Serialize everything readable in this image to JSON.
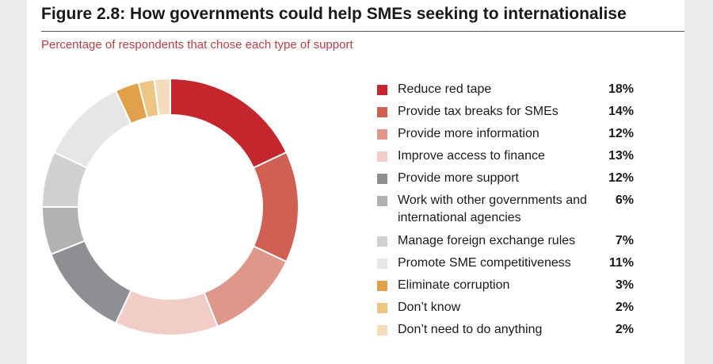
{
  "title": "Figure 2.8: How governments could help SMEs seeking to internationalise",
  "subtitle": "Percentage of respondents that chose each type of support",
  "chart_data": {
    "type": "pie",
    "donut": true,
    "legend_position": "right",
    "categories": [
      "Reduce red tape",
      "Provide tax breaks for SMEs",
      "Provide more information",
      "Improve access to finance",
      "Provide more support",
      "Work with other governments and international agencies",
      "Manage foreign exchange rules",
      "Promote SME competitiveness",
      "Eliminate corruption",
      "Don’t know",
      "Don’t need to do anything"
    ],
    "values": [
      18,
      14,
      12,
      13,
      12,
      6,
      7,
      11,
      3,
      2,
      2
    ],
    "labels": [
      "18%",
      "14%",
      "12%",
      "13%",
      "12%",
      "6%",
      "7%",
      "11%",
      "3%",
      "2%",
      "2%"
    ],
    "colors": [
      "#c4262e",
      "#d06054",
      "#e0978b",
      "#f1cdc5",
      "#8e8f92",
      "#b1b2b4",
      "#cfd0d2",
      "#e5e6e7",
      "#e3a04a",
      "#edc585",
      "#f4ddbb"
    ]
  }
}
